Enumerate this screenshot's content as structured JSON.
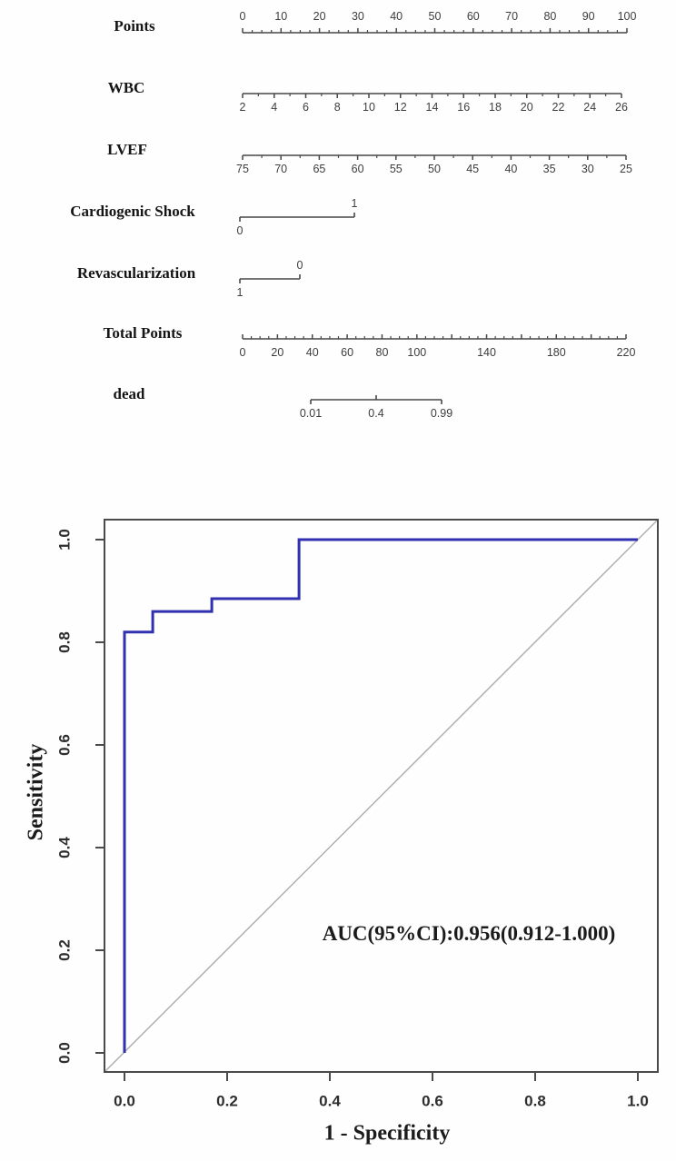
{
  "figure": {
    "description": "Nomogram for mortality prediction and ROC curve",
    "background_color": "#fefefe",
    "axis_color": "#474747",
    "tick_number_color": "#3d3d3d"
  },
  "chart_data": [
    {
      "type": "nomogram",
      "rows": [
        {
          "label": "Points",
          "min": 0,
          "max": 100,
          "labeled": [
            "0",
            "10",
            "20",
            "30",
            "40",
            "50",
            "60",
            "70",
            "80",
            "90",
            "100"
          ],
          "minor_step": 2.5
        },
        {
          "label": "WBC",
          "min": 2,
          "max": 26,
          "labeled": [
            "2",
            "4",
            "6",
            "8",
            "10",
            "12",
            "14",
            "16",
            "18",
            "20",
            "22",
            "24",
            "26"
          ],
          "minor_step": 1
        },
        {
          "label": "LVEF",
          "min": 75,
          "max": 25,
          "labeled": [
            "75",
            "70",
            "65",
            "60",
            "55",
            "50",
            "45",
            "40",
            "35",
            "30",
            "25"
          ],
          "minor_step": 2.5
        },
        {
          "label": "Cardiogenic Shock",
          "categories": [
            "0",
            "1"
          ]
        },
        {
          "label": "Revascularization",
          "categories": [
            "1",
            "0"
          ]
        },
        {
          "label": "Total Points",
          "min": 0,
          "max": 220,
          "labeled": [
            "0",
            "20",
            "40",
            "60",
            "80",
            "100",
            "140",
            "180",
            "220"
          ],
          "major_step": 20,
          "minor_step": 5
        },
        {
          "label": "dead",
          "ticks": [
            "0.01",
            "0.4",
            "0.99"
          ]
        }
      ]
    },
    {
      "type": "line",
      "name": "ROC curve",
      "xlabel": "1 - Specificity",
      "ylabel": "Sensitivity",
      "xlim": [
        0,
        1
      ],
      "ylim": [
        0,
        1
      ],
      "xtick_labels": [
        "0.0",
        "0.2",
        "0.4",
        "0.6",
        "0.8",
        "1.0"
      ],
      "ytick_labels": [
        "0.0",
        "0.2",
        "0.4",
        "0.6",
        "0.8",
        "1.0"
      ],
      "annotation": "AUC(95%CI):0.956(0.912-1.000)",
      "auc": 0.956,
      "ci": [
        0.912,
        1.0
      ],
      "grid": false,
      "series": [
        {
          "name": "nomogram ROC",
          "color": "#3030b0",
          "points": [
            [
              0,
              0
            ],
            [
              0,
              0.82
            ],
            [
              0.055,
              0.82
            ],
            [
              0.055,
              0.86
            ],
            [
              0.17,
              0.86
            ],
            [
              0.17,
              0.885
            ],
            [
              0.34,
              0.885
            ],
            [
              0.34,
              1.0
            ],
            [
              1.0,
              1.0
            ]
          ]
        }
      ],
      "reference_line": {
        "from": [
          0,
          0
        ],
        "to": [
          1,
          1
        ],
        "color": "#b0b0b0"
      }
    }
  ]
}
